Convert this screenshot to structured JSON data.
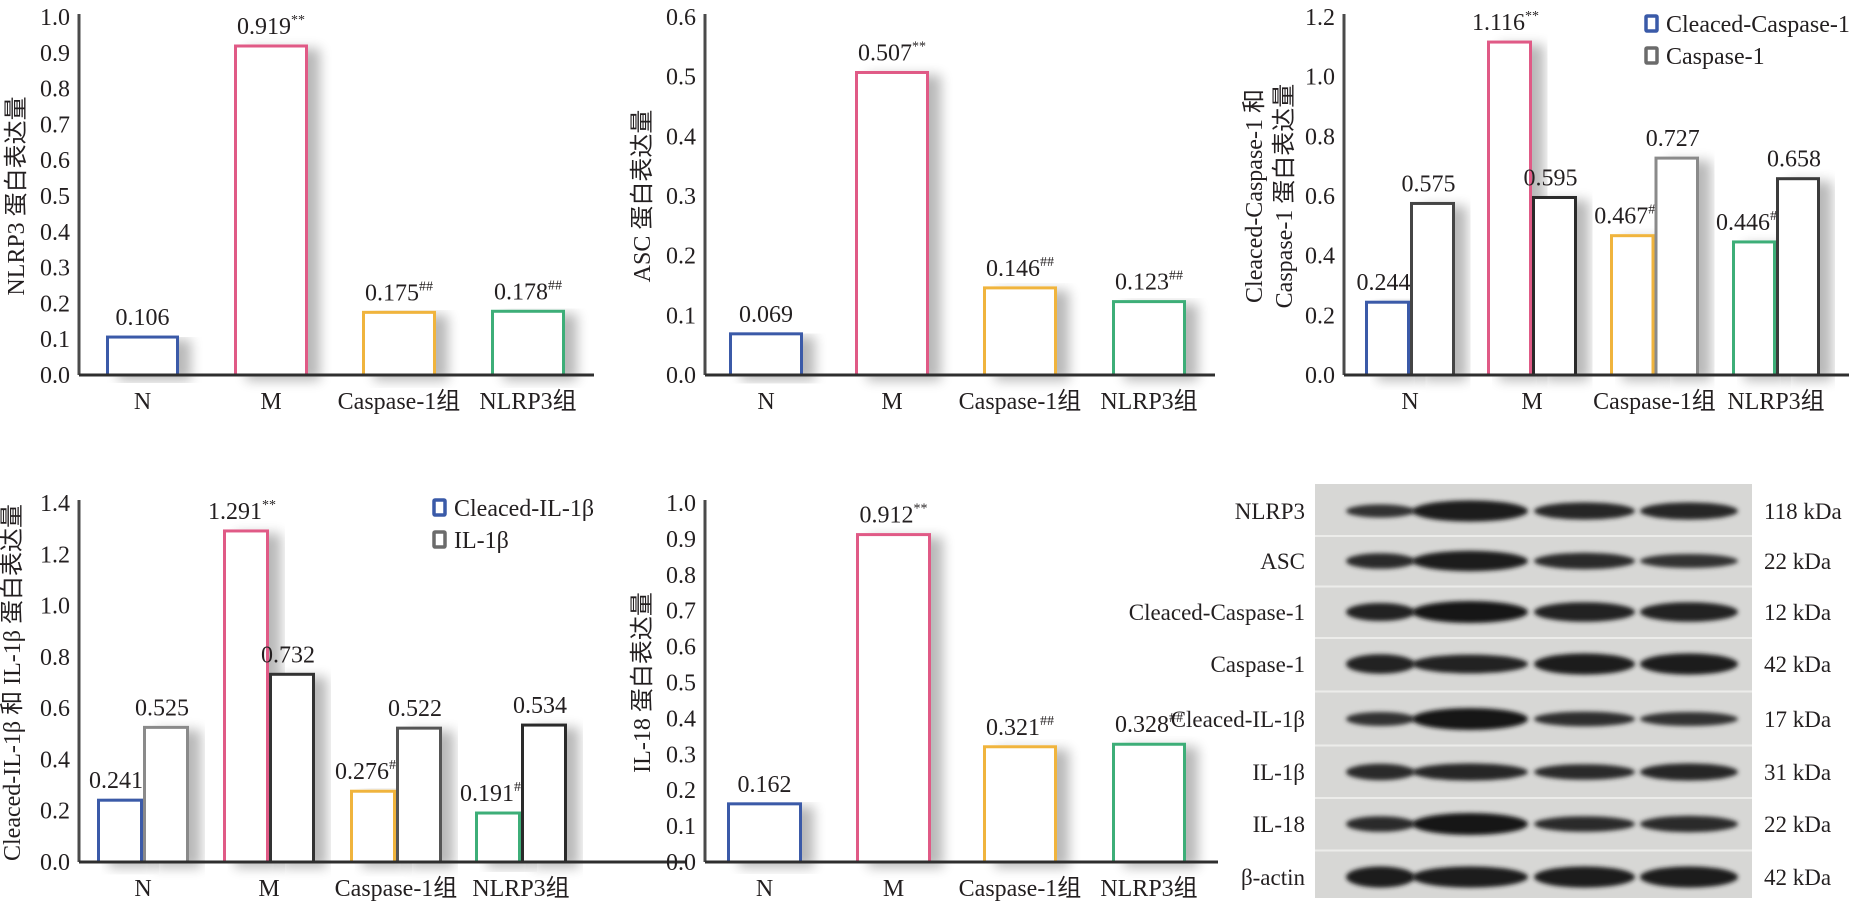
{
  "chart_data": [
    {
      "id": "nlrp3",
      "type": "bar",
      "ylabel": "NLRP3 蛋白表达量",
      "ylim": [
        0,
        1.0
      ],
      "yticks": [
        "0.0",
        "0.1",
        "0.2",
        "0.3",
        "0.4",
        "0.5",
        "0.6",
        "0.7",
        "0.8",
        "0.9",
        "1.0"
      ],
      "categories": [
        "N",
        "M",
        "Caspase-1组",
        "NLRP3组"
      ],
      "series": [
        {
          "name": "NLRP3",
          "values": [
            0.106,
            0.919,
            0.175,
            0.178
          ],
          "labels": [
            "0.106",
            "0.919",
            "0.175",
            "0.178"
          ],
          "marks": [
            "",
            "**",
            "##",
            "##"
          ],
          "colors": [
            "#3a5aa8",
            "#e05a86",
            "#f0b43c",
            "#3dae78"
          ]
        }
      ]
    },
    {
      "id": "asc",
      "type": "bar",
      "ylabel": "ASC 蛋白表达量",
      "ylim": [
        0,
        0.6
      ],
      "yticks": [
        "0.0",
        "0.1",
        "0.2",
        "0.3",
        "0.4",
        "0.5",
        "0.6"
      ],
      "categories": [
        "N",
        "M",
        "Caspase-1组",
        "NLRP3组"
      ],
      "series": [
        {
          "name": "ASC",
          "values": [
            0.069,
            0.507,
            0.146,
            0.123
          ],
          "labels": [
            "0.069",
            "0.507",
            "0.146",
            "0.123"
          ],
          "marks": [
            "",
            "**",
            "##",
            "##"
          ],
          "colors": [
            "#3a5aa8",
            "#e05a86",
            "#f0b43c",
            "#3dae78"
          ]
        }
      ]
    },
    {
      "id": "caspase",
      "type": "bar",
      "ylabel": [
        "Cleaced-Caspase-1 和",
        "Caspase-1 蛋白表达量"
      ],
      "ylim": [
        0,
        1.2
      ],
      "yticks": [
        "0.0",
        "0.2",
        "0.4",
        "0.6",
        "0.8",
        "1.0",
        "1.2"
      ],
      "categories": [
        "N",
        "M",
        "Caspase-1组",
        "NLRP3组"
      ],
      "legend_position": "top-right",
      "series": [
        {
          "name": "Cleaced-Caspase-1",
          "values": [
            0.244,
            1.116,
            0.467,
            0.446
          ],
          "labels": [
            "0.244",
            "1.116",
            "0.467",
            "0.446"
          ],
          "marks": [
            "",
            "**",
            "##",
            "##"
          ],
          "colors": [
            "#3a5aa8",
            "#e05a86",
            "#f0b43c",
            "#3dae78"
          ],
          "legend_color": "#3a5aa8"
        },
        {
          "name": "Caspase-1",
          "values": [
            0.575,
            0.595,
            0.727,
            0.658
          ],
          "labels": [
            "0.575",
            "0.595",
            "0.727",
            "0.658"
          ],
          "marks": [
            "",
            "",
            "",
            ""
          ],
          "colors": [
            "#444444",
            "#2a2a2a",
            "#8a8a8a",
            "#3a3a3a"
          ],
          "legend_color": "#6b6b6b"
        }
      ]
    },
    {
      "id": "il1b",
      "type": "bar",
      "ylabel": "Cleaced-IL-1β 和 IL-1β 蛋白表达量",
      "ylim": [
        0,
        1.4
      ],
      "yticks": [
        "0.0",
        "0.2",
        "0.4",
        "0.6",
        "0.8",
        "1.0",
        "1.2",
        "1.4"
      ],
      "categories": [
        "N",
        "M",
        "Caspase-1组",
        "NLRP3组"
      ],
      "legend_position": "top-right",
      "series": [
        {
          "name": "Cleaced-IL-1β",
          "values": [
            0.241,
            1.291,
            0.276,
            0.191
          ],
          "labels": [
            "0.241",
            "1.291",
            "0.276",
            "0.191"
          ],
          "marks": [
            "",
            "**",
            "##",
            "##"
          ],
          "colors": [
            "#3a5aa8",
            "#e05a86",
            "#f0b43c",
            "#3dae78"
          ],
          "legend_color": "#3a5aa8"
        },
        {
          "name": "IL-1β",
          "values": [
            0.525,
            0.732,
            0.522,
            0.534
          ],
          "labels": [
            "0.525",
            "0.732",
            "0.522",
            "0.534"
          ],
          "marks": [
            "",
            "",
            "",
            ""
          ],
          "colors": [
            "#8a8a8a",
            "#333333",
            "#555555",
            "#2a2a2a"
          ],
          "legend_color": "#6b6b6b"
        }
      ]
    },
    {
      "id": "il18",
      "type": "bar",
      "ylabel": "IL-18 蛋白表达量",
      "ylim": [
        0,
        1.0
      ],
      "yticks": [
        "0.0",
        "0.1",
        "0.2",
        "0.3",
        "0.4",
        "0.5",
        "0.6",
        "0.7",
        "0.8",
        "0.9",
        "1.0"
      ],
      "categories": [
        "N",
        "M",
        "Caspase-1组",
        "NLRP3组"
      ],
      "series": [
        {
          "name": "IL-18",
          "values": [
            0.162,
            0.912,
            0.321,
            0.328
          ],
          "labels": [
            "0.162",
            "0.912",
            "0.321",
            "0.328"
          ],
          "marks": [
            "",
            "**",
            "##",
            "##"
          ],
          "colors": [
            "#3a5aa8",
            "#e05a86",
            "#f0b43c",
            "#3dae78"
          ]
        }
      ]
    }
  ],
  "blot": {
    "rows": [
      {
        "protein": "NLRP3",
        "size": "118 kDa",
        "intensity": [
          0.45,
          0.95,
          0.7,
          0.7
        ]
      },
      {
        "protein": "ASC",
        "size": "22 kDa",
        "intensity": [
          0.6,
          0.9,
          0.65,
          0.5
        ]
      },
      {
        "protein": "Cleaced-Caspase-1",
        "size": "12 kDa",
        "intensity": [
          0.75,
          1.0,
          0.85,
          0.85
        ]
      },
      {
        "protein": "Caspase-1",
        "size": "42 kDa",
        "intensity": [
          0.85,
          0.8,
          0.95,
          0.95
        ]
      },
      {
        "protein": "Cleaced-IL-1β",
        "size": "17 kDa",
        "intensity": [
          0.5,
          1.0,
          0.55,
          0.5
        ]
      },
      {
        "protein": "IL-1β",
        "size": "31 kDa",
        "intensity": [
          0.65,
          0.7,
          0.6,
          0.7
        ]
      },
      {
        "protein": "IL-18",
        "size": "22 kDa",
        "intensity": [
          0.6,
          1.0,
          0.6,
          0.65
        ]
      },
      {
        "protein": "β-actin",
        "size": "42 kDa",
        "intensity": [
          0.95,
          0.95,
          0.95,
          0.95
        ]
      }
    ]
  }
}
